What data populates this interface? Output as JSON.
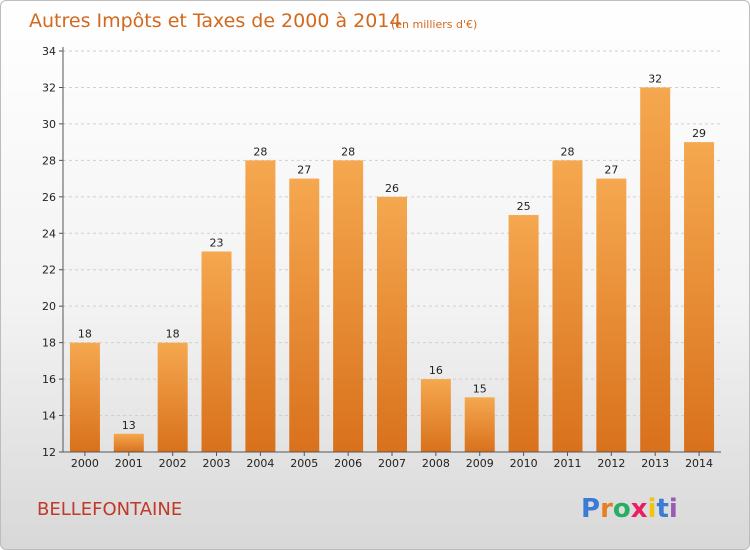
{
  "header": {
    "title": "Autres Impôts et Taxes de 2000 à 2014",
    "subtitle": "(en milliers d'€)"
  },
  "footer": {
    "commune": "BELLEFONTAINE",
    "logo_text": "Proxiti"
  },
  "colors": {
    "bar_top": "#f5a84f",
    "bar_bottom": "#d9711c",
    "title": "#d2691e",
    "commune": "#c0392b",
    "grid": "#d0d0d0"
  },
  "chart_data": {
    "type": "bar",
    "title": "Autres Impôts et Taxes de 2000 à 2014",
    "subtitle": "(en milliers d'€)",
    "xlabel": "",
    "ylabel": "",
    "categories": [
      "2000",
      "2001",
      "2002",
      "2003",
      "2004",
      "2005",
      "2006",
      "2007",
      "2008",
      "2009",
      "2010",
      "2011",
      "2012",
      "2013",
      "2014"
    ],
    "values": [
      18,
      13,
      18,
      23,
      28,
      27,
      28,
      26,
      16,
      15,
      25,
      28,
      27,
      32,
      29
    ],
    "ylim": [
      12,
      34
    ],
    "yticks": [
      12,
      14,
      16,
      18,
      20,
      22,
      24,
      26,
      28,
      30,
      32,
      34
    ],
    "grid": true,
    "data_labels": true
  }
}
